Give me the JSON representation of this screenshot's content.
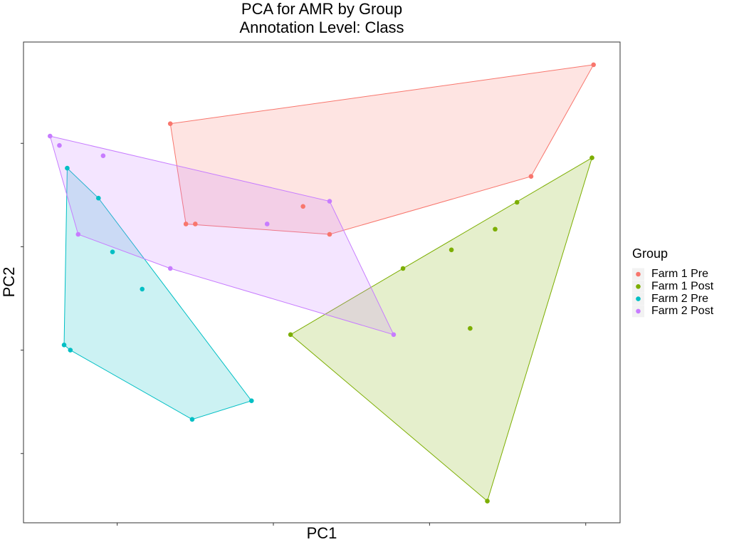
{
  "chart_data": {
    "type": "scatter",
    "title": "PCA for AMR by Group",
    "subtitle": "Annotation Level: Class",
    "x_label": "PC1",
    "y_label": "PC2",
    "legend_title": "Group",
    "legend_position": "right",
    "xlim": [
      -1.6,
      2.22
    ],
    "ylim": [
      -2.67,
      1.98
    ],
    "xticks": [
      -1,
      0,
      1,
      2
    ],
    "yticks": [
      -2,
      -1,
      0,
      1
    ],
    "hull": true,
    "series": [
      {
        "name": "Farm 1 Pre",
        "color": "#F8766D",
        "x": [
          -0.66,
          2.05,
          1.65,
          0.36,
          0.19,
          -0.5,
          -0.56
        ],
        "values": [
          1.19,
          1.76,
          0.68,
          0.12,
          0.39,
          0.22,
          0.22
        ]
      },
      {
        "name": "Farm 1 Post",
        "color": "#7CAE00",
        "x": [
          2.04,
          1.56,
          1.42,
          1.14,
          0.83,
          0.11,
          1.26,
          1.37
        ],
        "values": [
          0.86,
          0.43,
          0.17,
          -0.03,
          -0.21,
          -0.85,
          -0.79,
          -2.46
        ]
      },
      {
        "name": "Farm 2 Pre",
        "color": "#00BFC4",
        "x": [
          -1.32,
          -1.12,
          -1.03,
          -0.84,
          -1.34,
          -1.3,
          -0.14,
          -0.52
        ],
        "values": [
          0.76,
          0.47,
          -0.05,
          -0.41,
          -0.95,
          -1.0,
          -1.49,
          -1.67
        ]
      },
      {
        "name": "Farm 2 Post",
        "color": "#C77CFF",
        "x": [
          -1.43,
          -1.37,
          -1.09,
          -1.25,
          -0.66,
          -0.04,
          0.36,
          0.77
        ],
        "values": [
          1.07,
          0.98,
          0.88,
          0.12,
          -0.21,
          0.22,
          0.44,
          -0.85
        ]
      }
    ]
  }
}
